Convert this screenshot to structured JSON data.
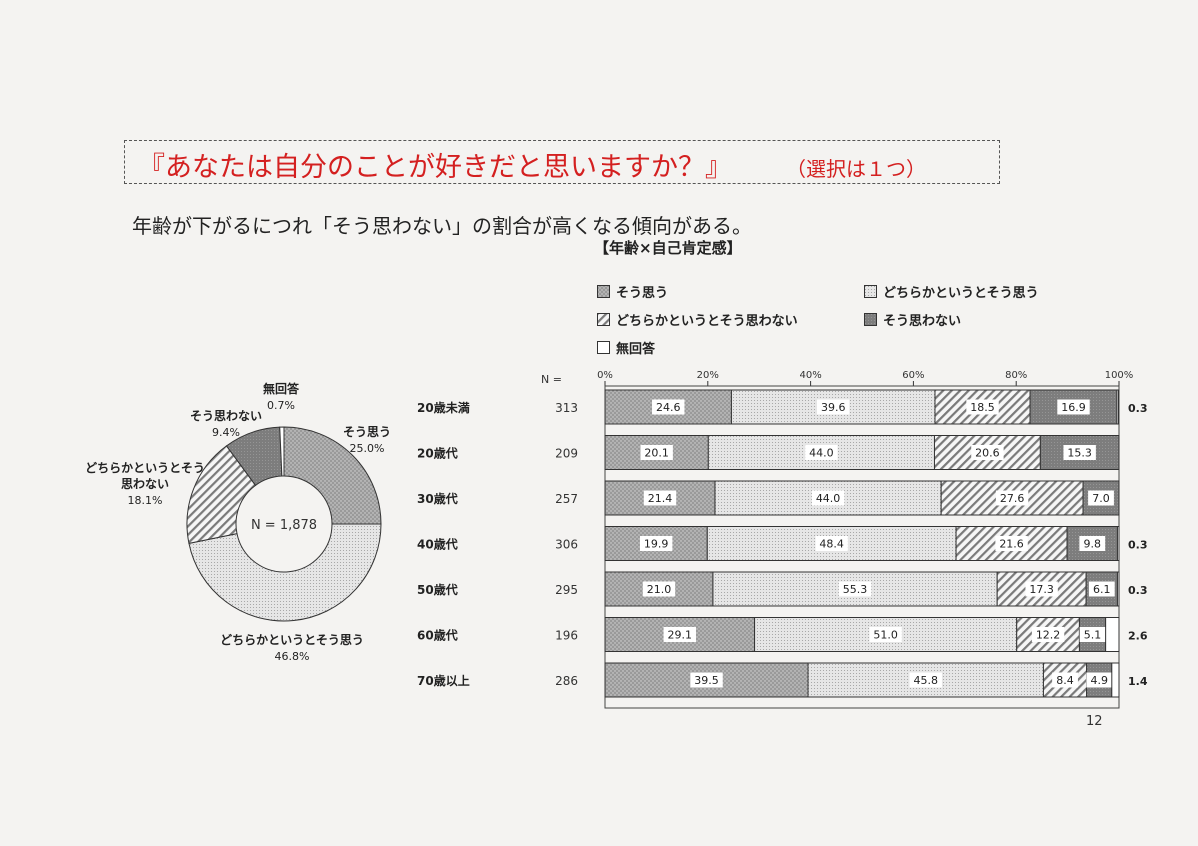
{
  "heading": {
    "title": "『あなたは自分のことが好きだと思いますか？』",
    "note": "（選択は１つ）",
    "summary": "年齢が下がるにつれ「そう思わない」の割合が高くなる傾向がある。"
  },
  "cross_title": "【年齢×自己肯定感】",
  "n_label": "N =",
  "page_number": "12",
  "colors": {
    "agree": "#9a9a9a",
    "somewhat_agree": "#e2e2e2",
    "somewhat_disagree": "#f4f4f4",
    "disagree": "#7f7f7f",
    "no_answer": "#ffffff"
  },
  "chart_data": [
    {
      "type": "pie",
      "variant": "donut",
      "center_label": "N = 1,878",
      "slices": [
        {
          "label": "そう思う",
          "value": 25.0,
          "display": "25.0%"
        },
        {
          "label": "どちらかというとそう思う",
          "value": 46.8,
          "display": "46.8%"
        },
        {
          "label": "どちらかというとそう思わない",
          "label_lines": [
            "どちらかというとそう",
            "思わない"
          ],
          "value": 18.1,
          "display": "18.1%"
        },
        {
          "label": "そう思わない",
          "value": 9.4,
          "display": "9.4%"
        },
        {
          "label": "無回答",
          "value": 0.7,
          "display": "0.7%"
        }
      ]
    },
    {
      "type": "bar",
      "orientation": "horizontal",
      "stacked": true,
      "percent": true,
      "xlim": [
        0,
        100
      ],
      "x_ticks": [
        "0%",
        "20%",
        "40%",
        "60%",
        "80%",
        "100%"
      ],
      "grid": false,
      "legend_position": "top",
      "categories": [
        "20歳未満",
        "20歳代",
        "30歳代",
        "40歳代",
        "50歳代",
        "60歳代",
        "70歳以上"
      ],
      "n": [
        313,
        209,
        257,
        306,
        295,
        196,
        286
      ],
      "series": [
        {
          "name": "そう思う",
          "values": [
            24.6,
            20.1,
            21.4,
            19.9,
            21.0,
            29.1,
            39.5
          ]
        },
        {
          "name": "どちらかというとそう思う",
          "values": [
            39.6,
            44.0,
            44.0,
            48.4,
            55.3,
            51.0,
            45.8
          ]
        },
        {
          "name": "どちらかというとそう思わない",
          "values": [
            18.5,
            20.6,
            27.6,
            21.6,
            17.3,
            12.2,
            8.4
          ]
        },
        {
          "name": "そう思わない",
          "values": [
            16.9,
            15.3,
            7.0,
            9.8,
            6.1,
            5.1,
            4.9
          ]
        },
        {
          "name": "無回答",
          "values": [
            0.3,
            0.0,
            0.0,
            0.3,
            0.3,
            2.6,
            1.4
          ]
        }
      ],
      "no_answer_labels": [
        "0.3",
        "",
        "",
        "0.3",
        "0.3",
        "2.6",
        "1.4"
      ]
    }
  ]
}
